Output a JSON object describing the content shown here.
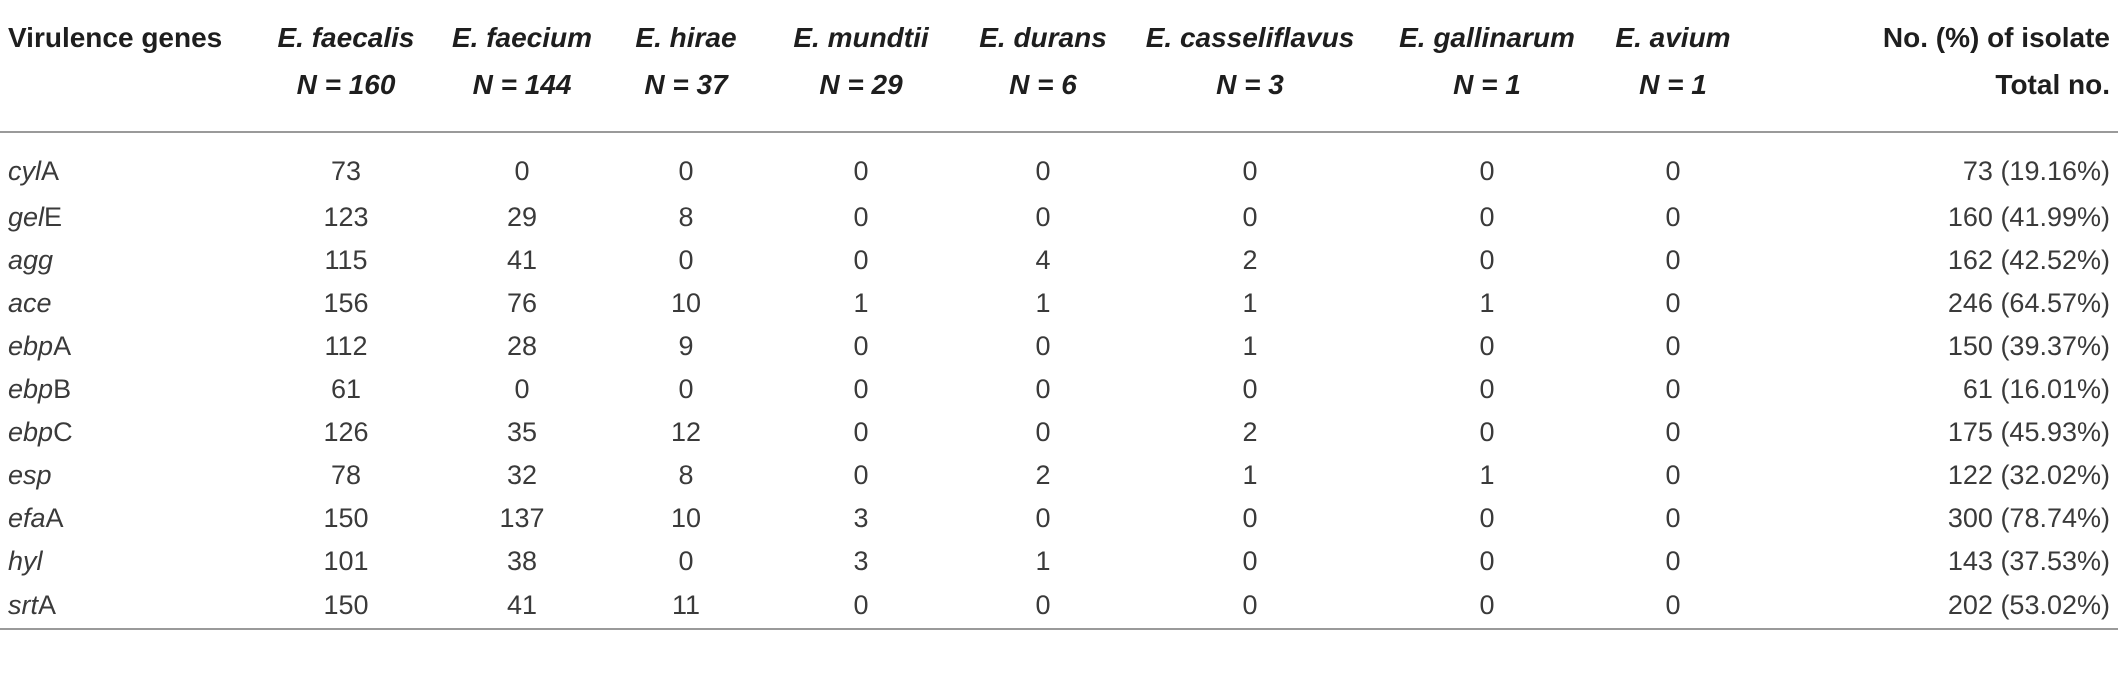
{
  "table": {
    "columns": [
      {
        "line1": "Virulence genes",
        "line2": "",
        "italic": false
      },
      {
        "line1": "E. faecalis",
        "line2": "N = 160",
        "italic": true
      },
      {
        "line1": "E. faecium",
        "line2": "N = 144",
        "italic": true
      },
      {
        "line1": "E. hirae",
        "line2": "N = 37",
        "italic": true
      },
      {
        "line1": "E. mundtii",
        "line2": "N = 29",
        "italic": true
      },
      {
        "line1": "E. durans",
        "line2": "N = 6",
        "italic": true
      },
      {
        "line1": "E. casseliflavus",
        "line2": "N = 3",
        "italic": true
      },
      {
        "line1": "E. gallinarum",
        "line2": "N = 1",
        "italic": true
      },
      {
        "line1": "E. avium",
        "line2": "N = 1",
        "italic": true
      },
      {
        "line1": "No. (%) of isolate",
        "line2": "Total no.",
        "italic": false
      }
    ],
    "rows": [
      {
        "gene_italic": "cyl",
        "gene_suffix": "A",
        "values": [
          "73",
          "0",
          "0",
          "0",
          "0",
          "0",
          "0",
          "0",
          "73 (19.16%)"
        ]
      },
      {
        "gene_italic": "gel",
        "gene_suffix": "E",
        "values": [
          "123",
          "29",
          "8",
          "0",
          "0",
          "0",
          "0",
          "0",
          "160 (41.99%)"
        ]
      },
      {
        "gene_italic": "agg",
        "gene_suffix": "",
        "values": [
          "115",
          "41",
          "0",
          "0",
          "4",
          "2",
          "0",
          "0",
          "162 (42.52%)"
        ]
      },
      {
        "gene_italic": "ace",
        "gene_suffix": "",
        "values": [
          "156",
          "76",
          "10",
          "1",
          "1",
          "1",
          "1",
          "0",
          "246 (64.57%)"
        ]
      },
      {
        "gene_italic": "ebp",
        "gene_suffix": "A",
        "values": [
          "112",
          "28",
          "9",
          "0",
          "0",
          "1",
          "0",
          "0",
          "150 (39.37%)"
        ]
      },
      {
        "gene_italic": "ebp",
        "gene_suffix": "B",
        "values": [
          "61",
          "0",
          "0",
          "0",
          "0",
          "0",
          "0",
          "0",
          "61 (16.01%)"
        ]
      },
      {
        "gene_italic": "ebp",
        "gene_suffix": "C",
        "values": [
          "126",
          "35",
          "12",
          "0",
          "0",
          "2",
          "0",
          "0",
          "175 (45.93%)"
        ]
      },
      {
        "gene_italic": "esp",
        "gene_suffix": "",
        "values": [
          "78",
          "32",
          "8",
          "0",
          "2",
          "1",
          "1",
          "0",
          "122 (32.02%)"
        ]
      },
      {
        "gene_italic": "efa",
        "gene_suffix": "A",
        "values": [
          "150",
          "137",
          "10",
          "3",
          "0",
          "0",
          "0",
          "0",
          "300 (78.74%)"
        ]
      },
      {
        "gene_italic": "hyl",
        "gene_suffix": "",
        "values": [
          "101",
          "38",
          "0",
          "3",
          "1",
          "0",
          "0",
          "0",
          "143 (37.53%)"
        ]
      },
      {
        "gene_italic": "srt",
        "gene_suffix": "A",
        "values": [
          "150",
          "41",
          "11",
          "0",
          "0",
          "0",
          "0",
          "0",
          "202 (53.02%)"
        ]
      }
    ]
  }
}
